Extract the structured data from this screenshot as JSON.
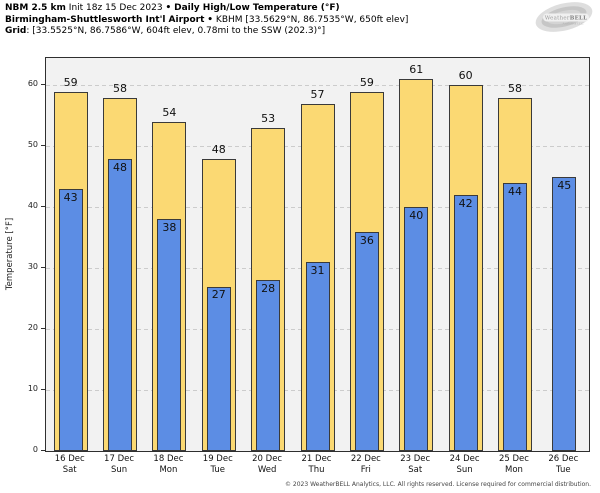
{
  "header": {
    "line1": {
      "model": "NBM 2.5 km",
      "init": "Init 18z 15 Dec 2023",
      "sep": "•",
      "product": "Daily High/Low Temperature (°F)"
    },
    "line2": {
      "station": "Birmingham-Shuttlesworth Int'l Airport",
      "sep": "•",
      "coords": "KBHM [33.5629°N, 86.7535°W, 650ft elev]"
    },
    "line3": {
      "label": "Grid",
      "value": ": [33.5525°N, 86.7586°W, 604ft elev, 0.78mi to the SSW (202.3)°]"
    }
  },
  "logo": {
    "text_weather": "Weather",
    "text_bell": "BELL",
    "text_sub": "Analytics LLC"
  },
  "footer": {
    "copyright": "© 2023 WeatherBELL Analytics, LLC. All rights reserved. License required for commercial distribution."
  },
  "chart_data": {
    "type": "bar",
    "title": "Daily High/Low Temperature (°F)",
    "ylabel": "Temperature [°F]",
    "ylim": [
      0,
      64.5
    ],
    "yticks": [
      0,
      10,
      20,
      30,
      40,
      50,
      60
    ],
    "grid": "horizontal-dashed",
    "legend_position": "none",
    "categories": [
      {
        "date": "16 Dec",
        "day": "Sat"
      },
      {
        "date": "17 Dec",
        "day": "Sun"
      },
      {
        "date": "18 Dec",
        "day": "Mon"
      },
      {
        "date": "19 Dec",
        "day": "Tue"
      },
      {
        "date": "20 Dec",
        "day": "Wed"
      },
      {
        "date": "21 Dec",
        "day": "Thu"
      },
      {
        "date": "22 Dec",
        "day": "Fri"
      },
      {
        "date": "23 Dec",
        "day": "Sat"
      },
      {
        "date": "24 Dec",
        "day": "Sun"
      },
      {
        "date": "25 Dec",
        "day": "Mon"
      },
      {
        "date": "26 Dec",
        "day": "Tue"
      }
    ],
    "series": [
      {
        "name": "High",
        "color": "#fbd973",
        "values": [
          59,
          58,
          54,
          48,
          53,
          57,
          59,
          61,
          60,
          58,
          null
        ]
      },
      {
        "name": "Low",
        "color": "#5c8de4",
        "values": [
          43,
          48,
          38,
          27,
          28,
          31,
          36,
          40,
          42,
          44,
          45
        ]
      }
    ],
    "bar_border_color": "#3a3a3a",
    "plot_bg": "#f2f2f2",
    "gridline_color": "#cccccc"
  }
}
